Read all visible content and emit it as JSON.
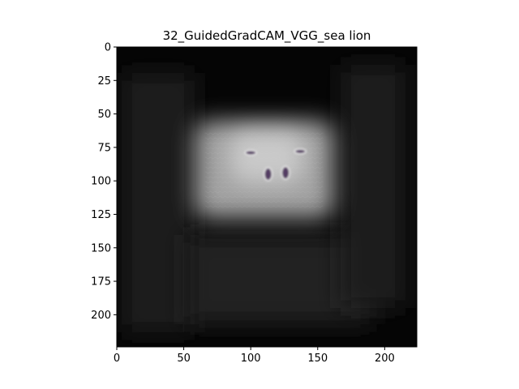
{
  "chart_data": {
    "type": "heatmap",
    "title": "32_GuidedGradCAM_VGG_sea lion",
    "xlabel": "",
    "ylabel": "",
    "image_size": [
      224,
      224
    ],
    "xlim": [
      0,
      224
    ],
    "ylim": [
      224,
      0
    ],
    "x_ticks": [
      0,
      50,
      100,
      150,
      200
    ],
    "y_ticks": [
      0,
      25,
      50,
      75,
      100,
      125,
      150,
      175,
      200
    ],
    "colormap": "gray",
    "grid": false,
    "background_color": "#050505",
    "highlight_color": "#bdbdbd",
    "feature_color": "#4a2f5a",
    "activation_region": {
      "x_range": [
        58,
        162
      ],
      "y_range": [
        55,
        128
      ],
      "peak": [
        112,
        82
      ]
    },
    "features": [
      {
        "name": "left-flipper-tip",
        "x": 100,
        "y": 79
      },
      {
        "name": "right-flipper-tip",
        "x": 137,
        "y": 78
      },
      {
        "name": "left-eye-blob",
        "x": 113,
        "y": 95
      },
      {
        "name": "right-eye-blob",
        "x": 126,
        "y": 94
      }
    ]
  }
}
